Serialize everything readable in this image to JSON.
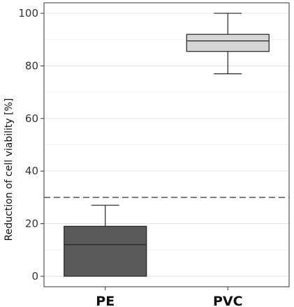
{
  "chart_data": {
    "type": "box",
    "ylabel": "Reduction of cell viability  [%]",
    "xlabel": "",
    "ylim": [
      -4,
      104
    ],
    "yticks": [
      0,
      20,
      40,
      60,
      80,
      100
    ],
    "grid": true,
    "categories": [
      "PE",
      "PVC"
    ],
    "boxes": [
      {
        "category": "PE",
        "whisker_low": 0,
        "q1": 0,
        "median": 12,
        "q3": 19,
        "whisker_high": 27,
        "color": "#5a5a5a"
      },
      {
        "category": "PVC",
        "whisker_low": 77,
        "q1": 85.5,
        "median": 89.5,
        "q3": 92,
        "whisker_high": 100,
        "color": "#d6d6d6"
      }
    ],
    "reference_line": {
      "y": 30,
      "style": "dashed",
      "color": "#555555"
    }
  }
}
